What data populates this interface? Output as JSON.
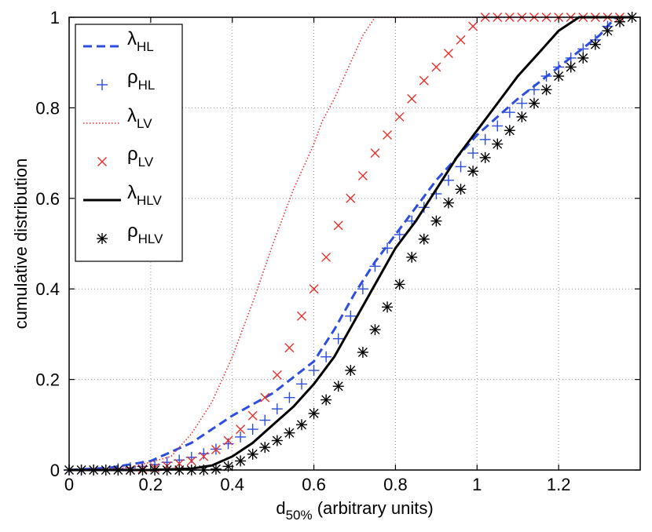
{
  "chart_data": {
    "type": "line",
    "xlabel": {
      "main": "d",
      "sub": "50%",
      "rest": " (arbitrary units)"
    },
    "ylabel": "cumulative distribution",
    "xlim": [
      0,
      1.4
    ],
    "ylim": [
      0,
      1
    ],
    "xticks": [
      0,
      0.2,
      0.4,
      0.6,
      0.8,
      1,
      1.2
    ],
    "xtick_labels": [
      "0",
      "0.2",
      "0.4",
      "0.6",
      "0.8",
      "1",
      "1.2"
    ],
    "yticks": [
      0,
      0.2,
      0.4,
      0.6,
      0.8,
      1
    ],
    "ytick_labels": [
      "0",
      "0.2",
      "0.4",
      "0.6",
      "0.8",
      "1"
    ],
    "grid": true,
    "legend_position": "top-left",
    "series": [
      {
        "id": "lambda-hl",
        "label_main": "λ",
        "label_sub": "HL",
        "style": "dashed-line",
        "color": "#2b4de0",
        "x": [
          0,
          0.1,
          0.2,
          0.3,
          0.4,
          0.5,
          0.6,
          0.65,
          0.7,
          0.75,
          0.8,
          0.85,
          0.9,
          1.0,
          1.1,
          1.2,
          1.3,
          1.34
        ],
        "y": [
          0,
          0.005,
          0.02,
          0.06,
          0.12,
          0.17,
          0.24,
          0.31,
          0.39,
          0.46,
          0.52,
          0.58,
          0.64,
          0.74,
          0.82,
          0.89,
          0.96,
          1.0
        ]
      },
      {
        "id": "rho-hl",
        "label_main": "ρ",
        "label_sub": "HL",
        "style": "plus-marker",
        "color": "#2b4de0",
        "x": [
          0.0,
          0.03,
          0.06,
          0.09,
          0.12,
          0.15,
          0.18,
          0.21,
          0.24,
          0.27,
          0.3,
          0.33,
          0.36,
          0.39,
          0.42,
          0.45,
          0.48,
          0.51,
          0.54,
          0.57,
          0.6,
          0.63,
          0.66,
          0.69,
          0.72,
          0.75,
          0.78,
          0.81,
          0.84,
          0.87,
          0.9,
          0.93,
          0.96,
          0.99,
          1.02,
          1.05,
          1.08,
          1.11,
          1.14,
          1.17,
          1.2,
          1.23,
          1.26,
          1.29,
          1.32
        ],
        "y": [
          0,
          0,
          0,
          0,
          0.003,
          0.005,
          0.008,
          0.012,
          0.017,
          0.022,
          0.028,
          0.036,
          0.046,
          0.058,
          0.073,
          0.09,
          0.11,
          0.135,
          0.16,
          0.19,
          0.22,
          0.25,
          0.29,
          0.34,
          0.4,
          0.45,
          0.49,
          0.52,
          0.55,
          0.58,
          0.61,
          0.64,
          0.67,
          0.7,
          0.73,
          0.76,
          0.79,
          0.81,
          0.84,
          0.87,
          0.89,
          0.91,
          0.93,
          0.95,
          0.98
        ]
      },
      {
        "id": "lambda-lv",
        "label_main": "λ",
        "label_sub": "LV",
        "style": "dotted-line",
        "color": "#e8302a",
        "x": [
          0,
          0.15,
          0.25,
          0.3,
          0.35,
          0.4,
          0.45,
          0.5,
          0.55,
          0.6,
          0.62,
          0.65,
          0.68,
          0.72,
          0.75,
          0.8,
          1.0,
          1.2,
          1.38
        ],
        "y": [
          0,
          0.005,
          0.03,
          0.08,
          0.15,
          0.25,
          0.37,
          0.5,
          0.62,
          0.72,
          0.77,
          0.82,
          0.88,
          0.96,
          1.0,
          1.0,
          1.0,
          1.0,
          1.0
        ]
      },
      {
        "id": "rho-lv",
        "label_main": "ρ",
        "label_sub": "LV",
        "style": "x-marker",
        "color": "#e8302a",
        "x": [
          0.15,
          0.18,
          0.21,
          0.24,
          0.27,
          0.3,
          0.33,
          0.36,
          0.39,
          0.42,
          0.45,
          0.48,
          0.51,
          0.54,
          0.57,
          0.6,
          0.63,
          0.66,
          0.69,
          0.72,
          0.75,
          0.78,
          0.81,
          0.84,
          0.87,
          0.9,
          0.93,
          0.96,
          0.99,
          1.02,
          1.05,
          1.08,
          1.11,
          1.14,
          1.17,
          1.2,
          1.23,
          1.26,
          1.29,
          1.32,
          1.35
        ],
        "y": [
          0.0,
          0.002,
          0.005,
          0.009,
          0.014,
          0.02,
          0.03,
          0.045,
          0.065,
          0.09,
          0.12,
          0.16,
          0.21,
          0.27,
          0.34,
          0.4,
          0.47,
          0.54,
          0.6,
          0.65,
          0.7,
          0.74,
          0.78,
          0.82,
          0.86,
          0.89,
          0.92,
          0.95,
          0.98,
          1.0,
          1.0,
          1.0,
          1.0,
          1.0,
          1.0,
          1.0,
          1.0,
          1.0,
          1.0,
          1.0,
          1.0
        ]
      },
      {
        "id": "lambda-hlv",
        "label_main": "λ",
        "label_sub": "HLV",
        "style": "solid-line",
        "color": "#000000",
        "x": [
          0,
          0.2,
          0.3,
          0.35,
          0.4,
          0.45,
          0.5,
          0.55,
          0.6,
          0.65,
          0.7,
          0.75,
          0.8,
          0.85,
          0.9,
          0.95,
          1.0,
          1.05,
          1.1,
          1.15,
          1.2,
          1.25,
          1.3,
          1.38
        ],
        "y": [
          0,
          0.0,
          0.003,
          0.01,
          0.03,
          0.06,
          0.1,
          0.14,
          0.19,
          0.25,
          0.33,
          0.41,
          0.49,
          0.55,
          0.62,
          0.69,
          0.75,
          0.81,
          0.87,
          0.92,
          0.97,
          1.0,
          1.0,
          1.0
        ]
      },
      {
        "id": "rho-hlv",
        "label_main": "ρ",
        "label_sub": "HLV",
        "style": "star-marker",
        "color": "#000000",
        "x": [
          0.0,
          0.03,
          0.06,
          0.09,
          0.12,
          0.15,
          0.18,
          0.21,
          0.24,
          0.27,
          0.3,
          0.33,
          0.36,
          0.39,
          0.42,
          0.45,
          0.48,
          0.51,
          0.54,
          0.57,
          0.6,
          0.63,
          0.66,
          0.69,
          0.72,
          0.75,
          0.78,
          0.81,
          0.84,
          0.87,
          0.9,
          0.93,
          0.96,
          0.99,
          1.02,
          1.05,
          1.08,
          1.11,
          1.14,
          1.17,
          1.2,
          1.23,
          1.26,
          1.29,
          1.32,
          1.35,
          1.38
        ],
        "y": [
          0,
          0,
          0,
          0,
          0,
          0,
          0,
          0,
          0,
          0,
          0.0,
          0.0,
          0.002,
          0.008,
          0.02,
          0.035,
          0.05,
          0.065,
          0.082,
          0.1,
          0.125,
          0.155,
          0.185,
          0.22,
          0.26,
          0.31,
          0.36,
          0.41,
          0.47,
          0.51,
          0.55,
          0.59,
          0.62,
          0.66,
          0.69,
          0.72,
          0.75,
          0.78,
          0.81,
          0.84,
          0.87,
          0.89,
          0.91,
          0.94,
          0.97,
          0.99,
          1.0
        ]
      }
    ]
  }
}
